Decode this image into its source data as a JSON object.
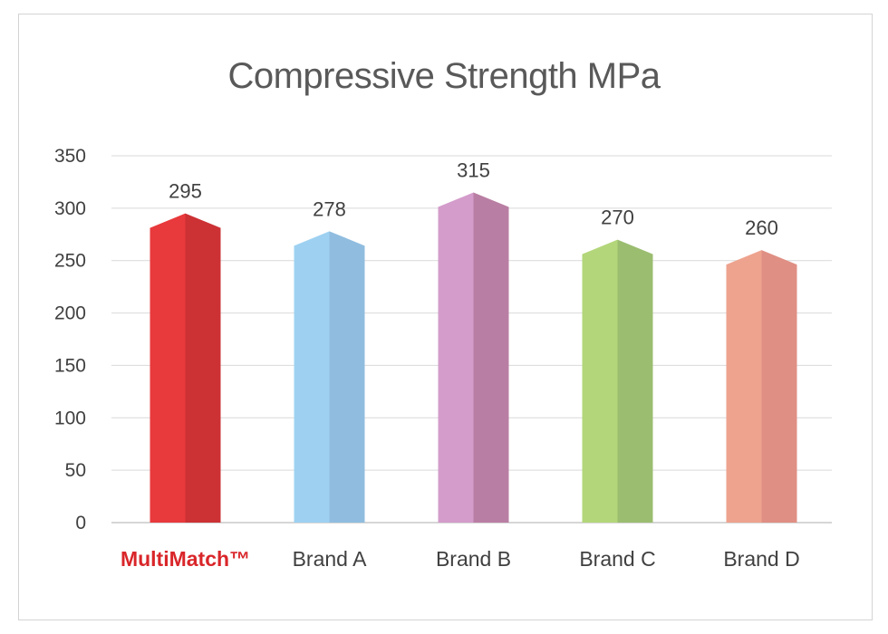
{
  "chart_data": {
    "type": "bar",
    "title": "Compressive Strength MPa",
    "categories": [
      "MultiMatch™",
      "Brand A",
      "Brand B",
      "Brand C",
      "Brand D"
    ],
    "values": [
      295,
      278,
      315,
      270,
      260
    ],
    "value_labels": [
      "295",
      "278",
      "315",
      "270",
      "260"
    ],
    "ylim": [
      0,
      350
    ],
    "yticks": [
      0,
      50,
      100,
      150,
      200,
      250,
      300,
      350
    ],
    "grid": true,
    "xlabel": "",
    "ylabel": "",
    "highlight_category": "MultiMatch™",
    "colors": [
      {
        "front": "#e8393c",
        "side": "#cc3134",
        "label": "#d9262a"
      },
      {
        "front": "#9ed1f1",
        "side": "#90bddf",
        "label": "#404040"
      },
      {
        "front": "#d39ccb",
        "side": "#b97ea3",
        "label": "#404040"
      },
      {
        "front": "#b3d67a",
        "side": "#9bbd70",
        "label": "#404040"
      },
      {
        "front": "#eea38f",
        "side": "#e08f84",
        "label": "#404040"
      }
    ]
  }
}
